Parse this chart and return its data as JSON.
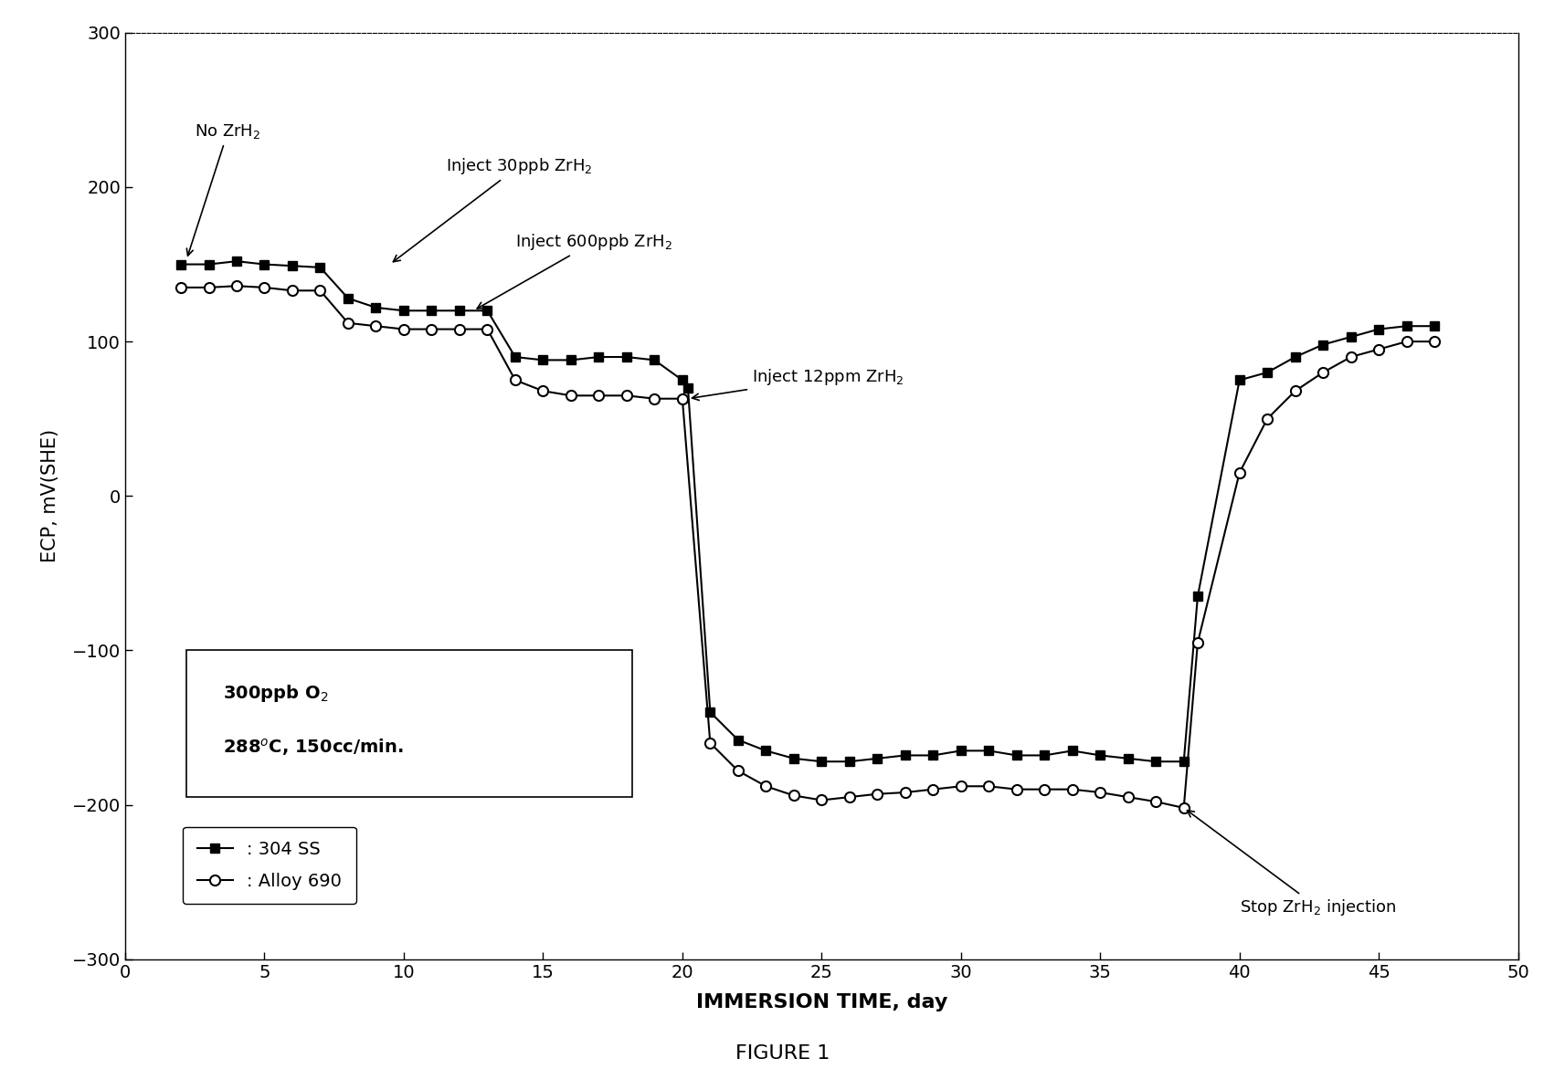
{
  "title": "FIGURE 1",
  "xlabel": "IMMERSION TIME, day",
  "ylabel": "ECP, mV(SHE)",
  "xlim": [
    0,
    50
  ],
  "ylim": [
    -300,
    300
  ],
  "xticks": [
    0,
    5,
    10,
    15,
    20,
    25,
    30,
    35,
    40,
    45,
    50
  ],
  "yticks": [
    -300,
    -200,
    -100,
    0,
    100,
    200,
    300
  ],
  "ss304_x": [
    2,
    3,
    4,
    5,
    6,
    7,
    8,
    9,
    10,
    11,
    12,
    13,
    14,
    15,
    16,
    17,
    18,
    19,
    20,
    20.2,
    21,
    22,
    23,
    24,
    25,
    26,
    27,
    28,
    29,
    30,
    31,
    32,
    33,
    34,
    35,
    36,
    37,
    38,
    38.5,
    40,
    41,
    42,
    43,
    44,
    45,
    46,
    47
  ],
  "ss304_y": [
    150,
    150,
    152,
    150,
    149,
    148,
    128,
    122,
    120,
    120,
    120,
    120,
    90,
    88,
    88,
    90,
    90,
    88,
    75,
    70,
    -140,
    -158,
    -165,
    -170,
    -172,
    -172,
    -170,
    -168,
    -168,
    -165,
    -165,
    -168,
    -168,
    -165,
    -168,
    -170,
    -172,
    -172,
    -65,
    75,
    80,
    90,
    98,
    103,
    108,
    110,
    110
  ],
  "alloy690_x": [
    2,
    3,
    4,
    5,
    6,
    7,
    8,
    9,
    10,
    11,
    12,
    13,
    14,
    15,
    16,
    17,
    18,
    19,
    20,
    21,
    22,
    23,
    24,
    25,
    26,
    27,
    28,
    29,
    30,
    31,
    32,
    33,
    34,
    35,
    36,
    37,
    38,
    38.5,
    40,
    41,
    42,
    43,
    44,
    45,
    46,
    47
  ],
  "alloy690_y": [
    135,
    135,
    136,
    135,
    133,
    133,
    112,
    110,
    108,
    108,
    108,
    108,
    75,
    68,
    65,
    65,
    65,
    63,
    63,
    -160,
    -178,
    -188,
    -194,
    -197,
    -195,
    -193,
    -192,
    -190,
    -188,
    -188,
    -190,
    -190,
    -190,
    -192,
    -195,
    -198,
    -202,
    -95,
    15,
    50,
    68,
    80,
    90,
    95,
    100,
    100
  ],
  "background_color": "#ffffff",
  "line_color": "#000000"
}
